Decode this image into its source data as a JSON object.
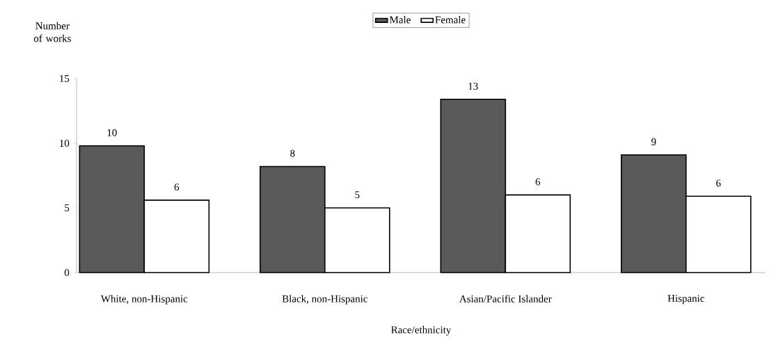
{
  "chart_data": {
    "type": "bar",
    "xlabel": "Race/ethnicity",
    "ylabel": "Number of works",
    "categories": [
      "White, non-Hispanic",
      "Black, non-Hispanic",
      "Asian/Pacific Islander",
      "Hispanic"
    ],
    "series": [
      {
        "name": "Male",
        "color": "#5a5a5a",
        "values": [
          9.8,
          8.2,
          13.4,
          9.1
        ],
        "value_labels": [
          "10",
          "8",
          "13",
          "9"
        ]
      },
      {
        "name": "Female",
        "color": "#ffffff",
        "values": [
          5.6,
          5.0,
          6.0,
          5.9
        ],
        "value_labels": [
          "6",
          "5",
          "6",
          "6"
        ]
      }
    ],
    "ylim": [
      0,
      15
    ],
    "yticks": [
      0,
      5,
      10,
      15
    ],
    "legend": "top"
  }
}
